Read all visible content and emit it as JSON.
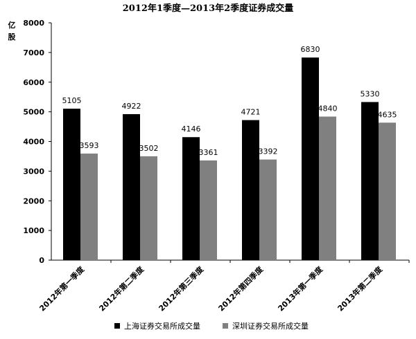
{
  "chart_data": {
    "type": "bar",
    "title": "2012年1季度—2013年2季度证券成交量",
    "ylabel": "亿股",
    "xlabel": "",
    "ylim": [
      0,
      8000
    ],
    "yticks": [
      0,
      1000,
      2000,
      3000,
      4000,
      5000,
      6000,
      7000,
      8000
    ],
    "grid": false,
    "legend_position": "bottom",
    "categories": [
      "2012年第一季度",
      "2012年第二季度",
      "2012年第三季度",
      "2012年第四季度",
      "2013年第一季度",
      "2013年第二季度"
    ],
    "series": [
      {
        "name": "上海证券交易所成交量",
        "color": "#000000",
        "values": [
          5105,
          4922,
          4146,
          4721,
          6830,
          5330
        ]
      },
      {
        "name": "深圳证券交易所成交量",
        "color": "#808080",
        "values": [
          3593,
          3502,
          3361,
          3392,
          4840,
          4635
        ]
      }
    ]
  }
}
